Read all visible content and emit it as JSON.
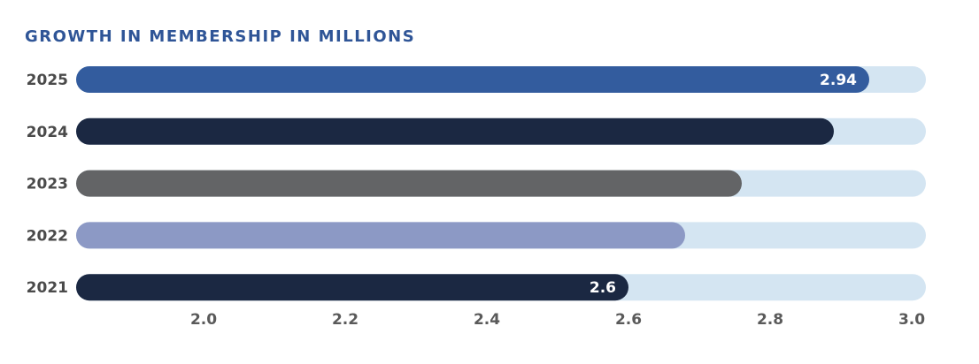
{
  "chart_data": {
    "type": "bar",
    "orientation": "horizontal",
    "title": "GROWTH IN MEMBERSHIP IN MILLIONS",
    "categories": [
      "2025",
      "2024",
      "2023",
      "2022",
      "2021"
    ],
    "values": [
      2.94,
      2.89,
      2.76,
      2.68,
      2.6
    ],
    "value_labels": [
      "2.94",
      null,
      null,
      null,
      "2.6"
    ],
    "colors": [
      "#335c9e",
      "#1b2842",
      "#636466",
      "#8c99c5",
      "#1b2842"
    ],
    "track_color": "#d4e5f2",
    "xlim": [
      1.82,
      3.02
    ],
    "xticks": [
      {
        "value": 2,
        "label": "2.0"
      },
      2.2,
      2.4,
      2.6,
      2.8,
      {
        "value": 3,
        "label": "3.0"
      }
    ],
    "grid": false
  }
}
